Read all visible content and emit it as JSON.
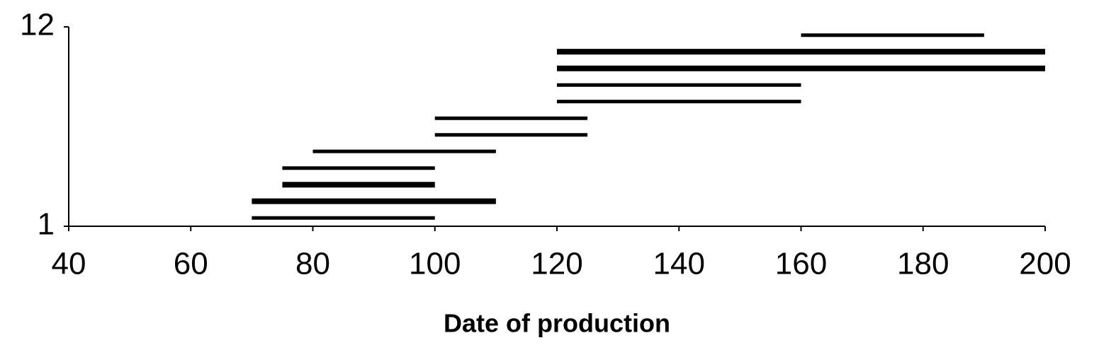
{
  "chart_data": {
    "type": "range",
    "x_label": "Date of production",
    "starts": [
      70,
      70,
      75,
      75,
      80,
      100,
      100,
      120,
      120,
      120,
      120,
      160
    ],
    "ends": [
      100,
      110,
      100,
      100,
      110,
      125,
      125,
      160,
      160,
      200,
      200,
      190
    ],
    "y": [
      1.46,
      2.38,
      3.29,
      4.21,
      5.13,
      6.04,
      6.96,
      7.88,
      8.79,
      9.71,
      10.63,
      11.54
    ],
    "linewidths": [
      5,
      8,
      8,
      5,
      5,
      5,
      5,
      5,
      5,
      8,
      8,
      5
    ],
    "color": "#000000",
    "xlim": [
      40,
      200
    ],
    "xticks": [
      40,
      60,
      80,
      100,
      120,
      140,
      160,
      180,
      200
    ],
    "ylim": [
      1,
      12
    ],
    "yticks": [
      1,
      12
    ]
  }
}
